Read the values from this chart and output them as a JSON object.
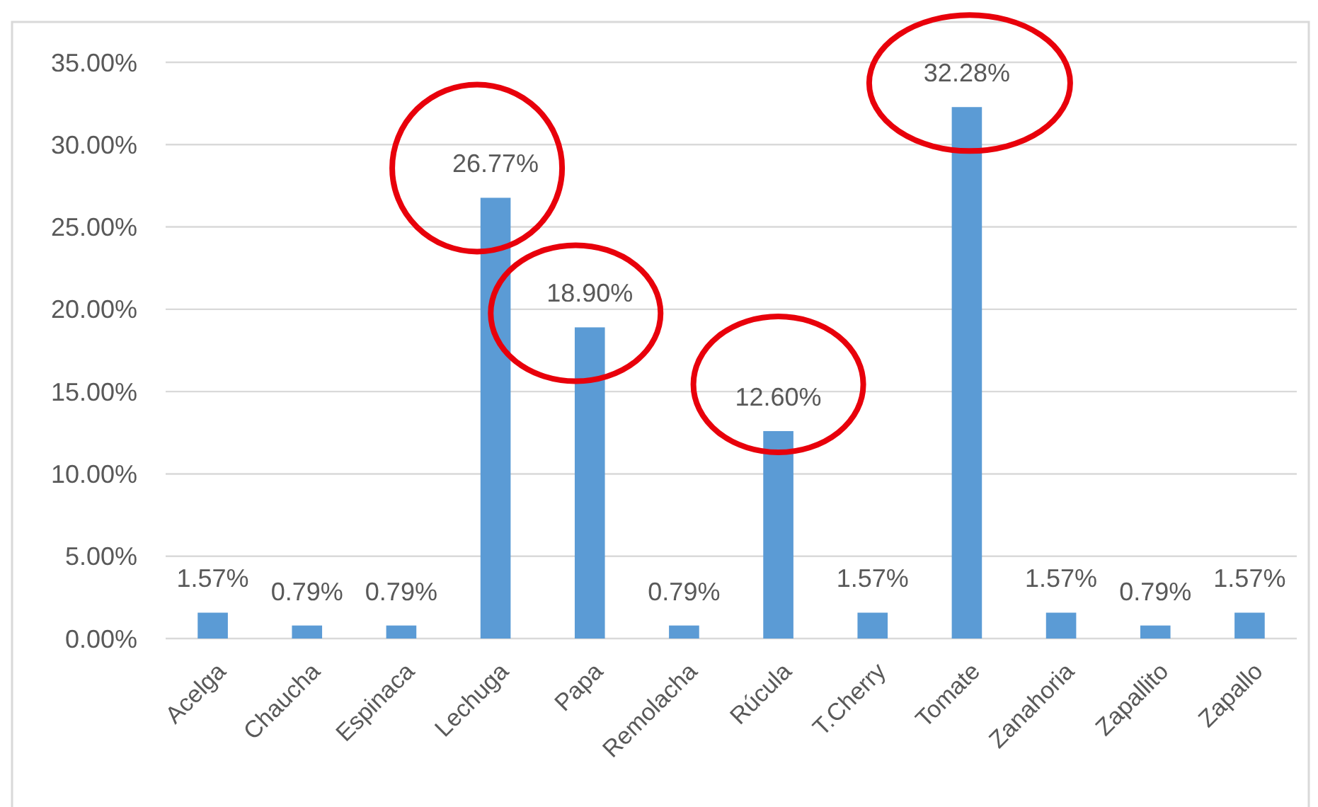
{
  "chart_data": {
    "type": "bar",
    "categories": [
      "Acelga",
      "Chaucha",
      "Espinaca",
      "Lechuga",
      "Papa",
      "Remolacha",
      "Rúcula",
      "T.Cherry",
      "Tomate",
      "Zanahoria",
      "Zapallito",
      "Zapallo"
    ],
    "values": [
      1.57,
      0.79,
      0.79,
      26.77,
      18.9,
      0.79,
      12.6,
      1.57,
      32.28,
      1.57,
      0.79,
      1.57
    ],
    "value_labels": [
      "1.57%",
      "0.79%",
      "0.79%",
      "26.77%",
      "18.90%",
      "0.79%",
      "12.60%",
      "1.57%",
      "32.28%",
      "1.57%",
      "0.79%",
      "1.57%"
    ],
    "color": "#5b9bd5",
    "ylim": [
      0,
      35
    ],
    "yticks": [
      {
        "value": 0,
        "label": "0.00%"
      },
      {
        "value": 5,
        "label": "5.00%"
      },
      {
        "value": 10,
        "label": "10.00%"
      },
      {
        "value": 15,
        "label": "15.00%"
      },
      {
        "value": 20,
        "label": "20.00%"
      },
      {
        "value": 25,
        "label": "25.00%"
      },
      {
        "value": 30,
        "label": "30.00%"
      },
      {
        "value": 35,
        "label": "35.00%"
      }
    ],
    "grid": "y"
  }
}
